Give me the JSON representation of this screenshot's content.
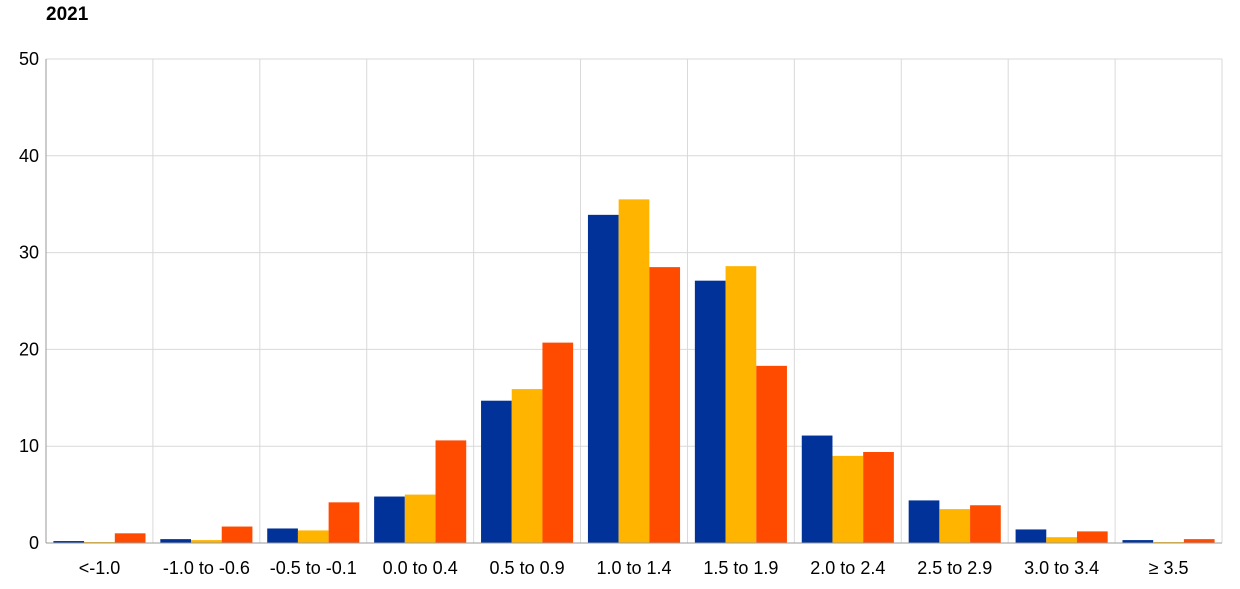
{
  "chart_data": {
    "type": "bar",
    "title": "2021",
    "xlabel": "",
    "ylabel": "",
    "ylim": [
      0,
      50
    ],
    "yticks": [
      0,
      10,
      20,
      30,
      40,
      50
    ],
    "grid": true,
    "categories": [
      "<-1.0",
      "-1.0 to -0.6",
      "-0.5 to -0.1",
      "0.0 to 0.4",
      "0.5 to 0.9",
      "1.0 to 1.4",
      "1.5 to 1.9",
      "2.0 to 2.4",
      "2.5 to 2.9",
      "3.0 to 3.4",
      "≥ 3.5"
    ],
    "series": [
      {
        "color": "#003299",
        "values": [
          0.2,
          0.4,
          1.5,
          4.8,
          14.7,
          33.9,
          27.1,
          11.1,
          4.4,
          1.4,
          0.3
        ]
      },
      {
        "color": "#FFB400",
        "values": [
          0.1,
          0.3,
          1.3,
          5.0,
          15.9,
          35.5,
          28.6,
          9.0,
          3.5,
          0.6,
          0.1
        ]
      },
      {
        "color": "#FF4B00",
        "values": [
          1.0,
          1.7,
          4.2,
          10.6,
          20.7,
          28.5,
          18.3,
          9.4,
          3.9,
          1.2,
          0.4
        ]
      }
    ]
  }
}
